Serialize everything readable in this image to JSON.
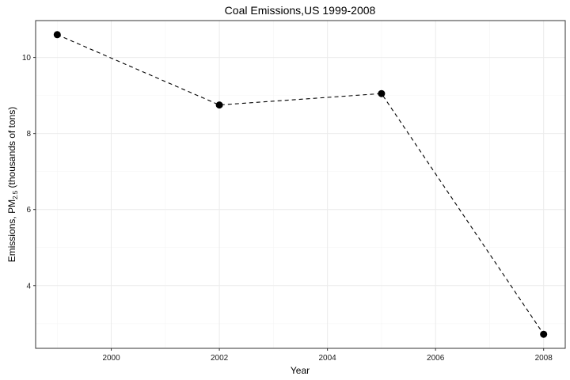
{
  "chart_data": {
    "type": "line",
    "title": "Coal Emissions,US 1999-2008",
    "xlabel": "Year",
    "ylabel": {
      "prefix": "Emissions, PM",
      "subscript": "2.5",
      "suffix": " (thousands of tons)"
    },
    "x": [
      1999,
      2002,
      2005,
      2008
    ],
    "values": [
      10.6,
      8.75,
      9.05,
      2.72
    ],
    "xlim": [
      1998.6,
      2008.4
    ],
    "ylim": [
      2.35,
      10.97
    ],
    "x_ticks": [
      2000,
      2002,
      2004,
      2006,
      2008
    ],
    "x_tick_labels": [
      "2000",
      "2002",
      "2004",
      "2006",
      "2008"
    ],
    "y_ticks": [
      4,
      6,
      8,
      10
    ],
    "y_tick_labels": [
      "4",
      "6",
      "8",
      "10"
    ],
    "line_style": "dashed",
    "marker": "filled-circle",
    "grid": true,
    "colors": {
      "line": "#000000",
      "marker": "#000000",
      "grid_major": "#ebebeb",
      "grid_minor": "#f5f5f5",
      "panel_border": "#333333",
      "background": "#ffffff"
    }
  }
}
